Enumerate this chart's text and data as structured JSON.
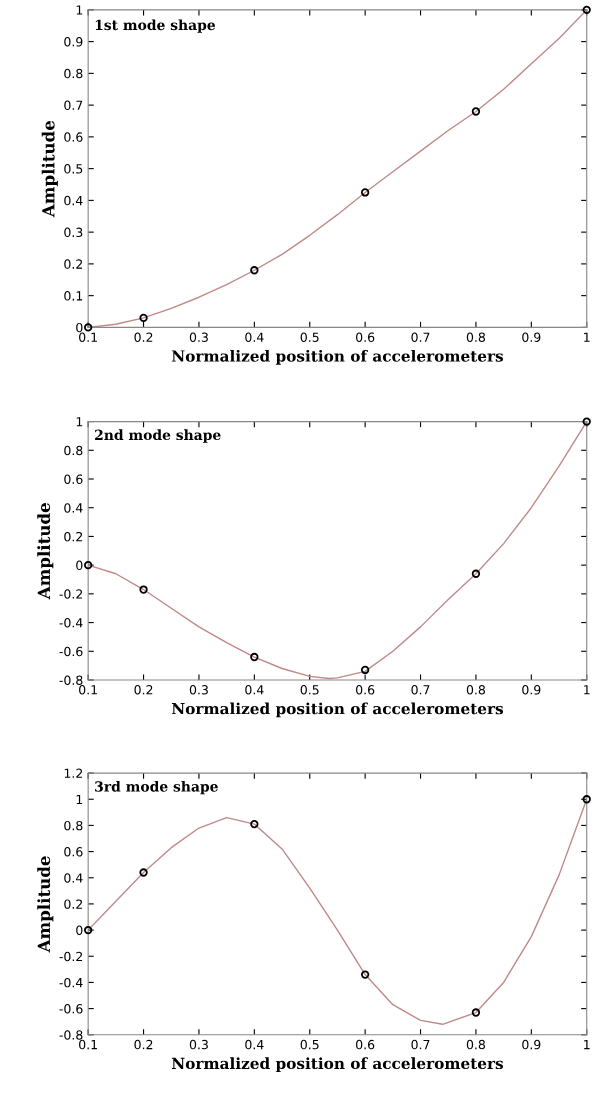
{
  "chart_data": [
    {
      "type": "line",
      "title": "1st mode shape",
      "xlabel": "Normalized position of accelerometers",
      "ylabel": "Amplitude",
      "xlim": [
        0.1,
        1
      ],
      "xticks": [
        0.1,
        0.2,
        0.3,
        0.4,
        0.5,
        0.6,
        0.7,
        0.8,
        0.9,
        1
      ],
      "ylim": [
        0,
        1
      ],
      "yticks": [
        0,
        0.1,
        0.2,
        0.3,
        0.4,
        0.5,
        0.6,
        0.7,
        0.8,
        0.9,
        1
      ],
      "grid": false,
      "series": [
        {
          "color": "#c08888",
          "marker": "none",
          "line_style": "solid",
          "x": [
            0.1,
            0.15,
            0.2,
            0.25,
            0.3,
            0.35,
            0.4,
            0.45,
            0.5,
            0.55,
            0.6,
            0.65,
            0.7,
            0.75,
            0.8,
            0.85,
            0.9,
            0.95,
            1.0
          ],
          "values": [
            0,
            0.01,
            0.03,
            0.06,
            0.095,
            0.135,
            0.18,
            0.23,
            0.29,
            0.355,
            0.425,
            0.49,
            0.555,
            0.62,
            0.68,
            0.75,
            0.83,
            0.91,
            1.0
          ]
        },
        {
          "type": "scatter",
          "color": "#000000",
          "marker": "circle",
          "x": [
            0.1,
            0.2,
            0.4,
            0.6,
            0.8,
            1.0
          ],
          "values": [
            0,
            0.03,
            0.18,
            0.425,
            0.68,
            1.0
          ]
        }
      ]
    },
    {
      "type": "line",
      "title": "2nd mode shape",
      "xlabel": "Normalized position of accelerometers",
      "ylabel": "Amplitude",
      "xlim": [
        0.1,
        1
      ],
      "xticks": [
        0.1,
        0.2,
        0.3,
        0.4,
        0.5,
        0.6,
        0.7,
        0.8,
        0.9,
        1
      ],
      "ylim": [
        -0.8,
        1
      ],
      "yticks": [
        -0.8,
        -0.6,
        -0.4,
        -0.2,
        0,
        0.2,
        0.4,
        0.6,
        0.8,
        1
      ],
      "grid": false,
      "series": [
        {
          "color": "#c08888",
          "marker": "none",
          "line_style": "solid",
          "x": [
            0.1,
            0.15,
            0.2,
            0.25,
            0.3,
            0.35,
            0.4,
            0.45,
            0.5,
            0.535,
            0.55,
            0.6,
            0.65,
            0.7,
            0.75,
            0.8,
            0.85,
            0.9,
            0.95,
            1.0
          ],
          "values": [
            0,
            -0.06,
            -0.17,
            -0.3,
            -0.43,
            -0.54,
            -0.64,
            -0.72,
            -0.775,
            -0.79,
            -0.785,
            -0.74,
            -0.6,
            -0.43,
            -0.24,
            -0.06,
            0.15,
            0.4,
            0.69,
            1.0
          ]
        },
        {
          "type": "scatter",
          "color": "#000000",
          "marker": "circle",
          "x": [
            0.1,
            0.2,
            0.4,
            0.6,
            0.8,
            1.0
          ],
          "values": [
            0,
            -0.17,
            -0.64,
            -0.73,
            -0.06,
            1.0
          ]
        }
      ]
    },
    {
      "type": "line",
      "title": "3rd mode shape",
      "xlabel": "Normalized position of accelerometers",
      "ylabel": "Amplitude",
      "xlim": [
        0.1,
        1
      ],
      "xticks": [
        0.1,
        0.2,
        0.3,
        0.4,
        0.5,
        0.6,
        0.7,
        0.8,
        0.9,
        1
      ],
      "ylim": [
        -0.8,
        1.2
      ],
      "yticks": [
        -0.8,
        -0.6,
        -0.4,
        -0.2,
        0,
        0.2,
        0.4,
        0.6,
        0.8,
        1,
        1.2
      ],
      "grid": false,
      "series": [
        {
          "color": "#c08888",
          "marker": "none",
          "line_style": "solid",
          "x": [
            0.1,
            0.15,
            0.2,
            0.25,
            0.3,
            0.35,
            0.4,
            0.45,
            0.5,
            0.55,
            0.6,
            0.65,
            0.7,
            0.74,
            0.8,
            0.85,
            0.9,
            0.95,
            1.0
          ],
          "values": [
            0,
            0.22,
            0.44,
            0.63,
            0.78,
            0.86,
            0.81,
            0.62,
            0.32,
            0.0,
            -0.34,
            -0.57,
            -0.69,
            -0.72,
            -0.63,
            -0.4,
            -0.05,
            0.42,
            1.0
          ]
        },
        {
          "type": "scatter",
          "color": "#000000",
          "marker": "circle",
          "x": [
            0.1,
            0.2,
            0.4,
            0.6,
            0.8,
            1.0
          ],
          "values": [
            0,
            0.44,
            0.81,
            -0.34,
            -0.63,
            1.0
          ]
        }
      ]
    }
  ]
}
